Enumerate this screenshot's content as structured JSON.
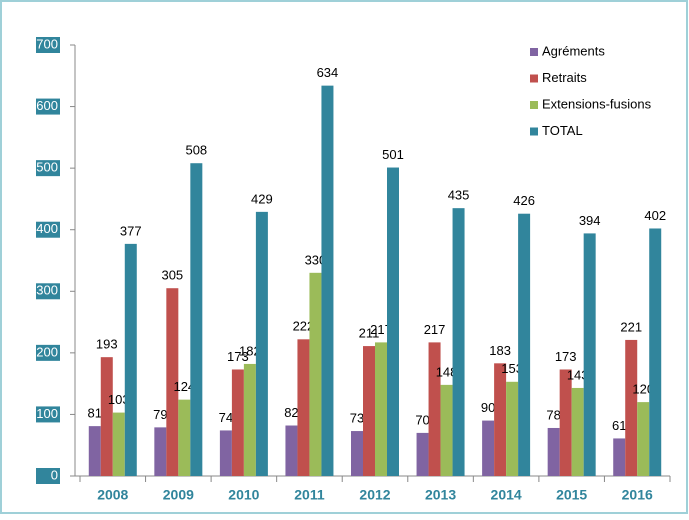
{
  "chart_data": {
    "type": "bar",
    "categories": [
      "2008",
      "2009",
      "2010",
      "2011",
      "2012",
      "2013",
      "2014",
      "2015",
      "2016"
    ],
    "series": [
      {
        "name": "Agréments",
        "color": "#8064a2",
        "values": [
          81,
          79,
          74,
          82,
          73,
          70,
          90,
          78,
          61
        ]
      },
      {
        "name": "Retraits",
        "color": "#c0504d",
        "values": [
          193,
          305,
          173,
          222,
          211,
          217,
          183,
          173,
          221
        ]
      },
      {
        "name": "Extensions-fusions",
        "color": "#9bbb59",
        "values": [
          103,
          124,
          182,
          330,
          217,
          148,
          153,
          143,
          120
        ]
      },
      {
        "name": "TOTAL",
        "color": "#31859c",
        "values": [
          377,
          508,
          429,
          634,
          501,
          435,
          426,
          394,
          402
        ]
      }
    ],
    "ylim": [
      0,
      700
    ],
    "yticks": [
      0,
      100,
      200,
      300,
      400,
      500,
      600,
      700
    ],
    "grid": true,
    "legend": "top-right"
  }
}
